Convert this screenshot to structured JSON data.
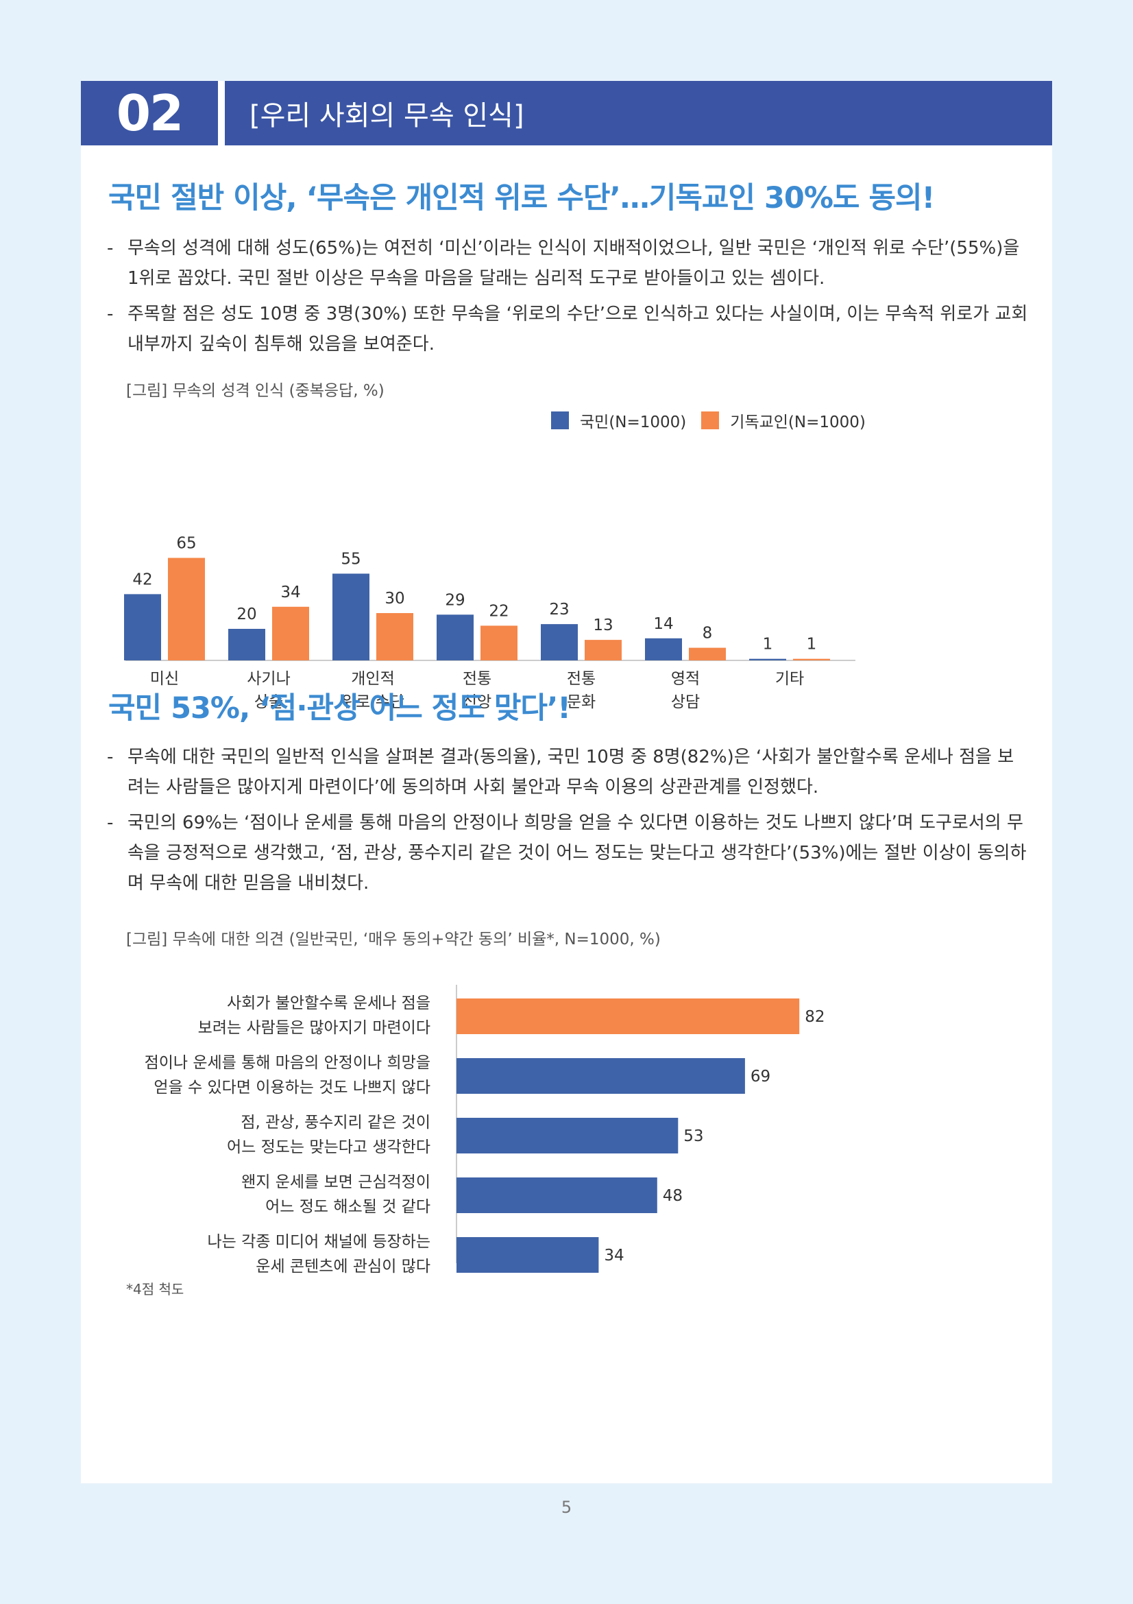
{
  "header": {
    "number": "02",
    "title": "[우리 사회의 무속 인식]"
  },
  "section1": {
    "title": "국민 절반 이상, ‘무속은 개인적 위로 수단’…기독교인 30%도 동의!",
    "bullets": [
      "무속의 성격에 대해 성도(65%)는 여전히 ‘미신’이라는 인식이 지배적이었으나, 일반 국민은 ‘개인적 위로 수단’(55%)을 1위로 꼽았다. 국민 절반 이상은 무속을 마음을 달래는 심리적 도구로 받아들이고 있는 셈이다.",
      "주목할 점은 성도 10명 중 3명(30%) 또한 무속을 ‘위로의 수단’으로 인식하고 있다는 사실이며, 이는 무속적 위로가 교회 내부까지 깊숙이 침투해 있음을 보여준다."
    ],
    "caption": "[그림] 무속의 성격 인식 (중복응답, %)"
  },
  "section2": {
    "title": "국민 53%, ‘점·관상 어느 정도 맞다’!",
    "bullets": [
      "무속에 대한 국민의 일반적 인식을 살펴본 결과(동의율), 국민 10명 중 8명(82%)은 ‘사회가 불안할수록 운세나 점을 보려는 사람들은 많아지게 마련이다’에 동의하며 사회 불안과 무속 이용의 상관관계를 인정했다.",
      "국민의 69%는 ‘점이나 운세를 통해 마음의 안정이나 희망을 얻을 수 있다면 이용하는 것도 나쁘지 않다’며 도구로서의 무속을 긍정적으로 생각했고, ‘점, 관상, 풍수지리 같은 것이 어느 정도는 맞는다고 생각한다’(53%)에는 절반 이상이 동의하며 무속에 대한 믿음을 내비쳤다."
    ],
    "caption": "[그림] 무속에 대한 의견 (일반국민, ‘매우 동의+약간 동의’ 비율*, N=1000, %)",
    "footnote": "*4점 척도"
  },
  "chart_data": [
    {
      "type": "bar",
      "categories": [
        [
          "미신"
        ],
        [
          "사기나",
          "상술"
        ],
        [
          "개인적",
          "위로 수단"
        ],
        [
          "전통",
          "신앙"
        ],
        [
          "전통",
          "문화"
        ],
        [
          "영적",
          "상담"
        ],
        [
          "기타"
        ]
      ],
      "series": [
        {
          "name": "국민(N=1000)",
          "color": "#3f63a8",
          "values": [
            42,
            20,
            55,
            29,
            23,
            14,
            1
          ]
        },
        {
          "name": "기독교인(N=1000)",
          "color": "#f5874a",
          "values": [
            65,
            34,
            30,
            22,
            13,
            8,
            1
          ]
        }
      ],
      "ylim": [
        0,
        70
      ]
    },
    {
      "type": "bar",
      "orientation": "horizontal",
      "categories": [
        [
          "사회가 불안할수록 운세나 점을",
          "보려는 사람들은 많아지기 마련이다"
        ],
        [
          "점이나 운세를 통해 마음의 안정이나 희망을",
          "얻을 수 있다면 이용하는 것도 나쁘지 않다"
        ],
        [
          "점, 관상, 풍수지리 같은 것이",
          "어느 정도는 맞는다고 생각한다"
        ],
        [
          "왠지 운세를 보면 근심걱정이",
          "어느 정도 해소될 것 같다"
        ],
        [
          "나는 각종 미디어 채널에 등장하는",
          "운세 콘텐츠에 관심이 많다"
        ]
      ],
      "values": [
        82,
        69,
        53,
        48,
        34
      ],
      "colors": [
        "#f5874a",
        "#3f63a8",
        "#3f63a8",
        "#3f63a8",
        "#3f63a8"
      ],
      "xlim": [
        0,
        100
      ]
    }
  ],
  "page_number": "5"
}
